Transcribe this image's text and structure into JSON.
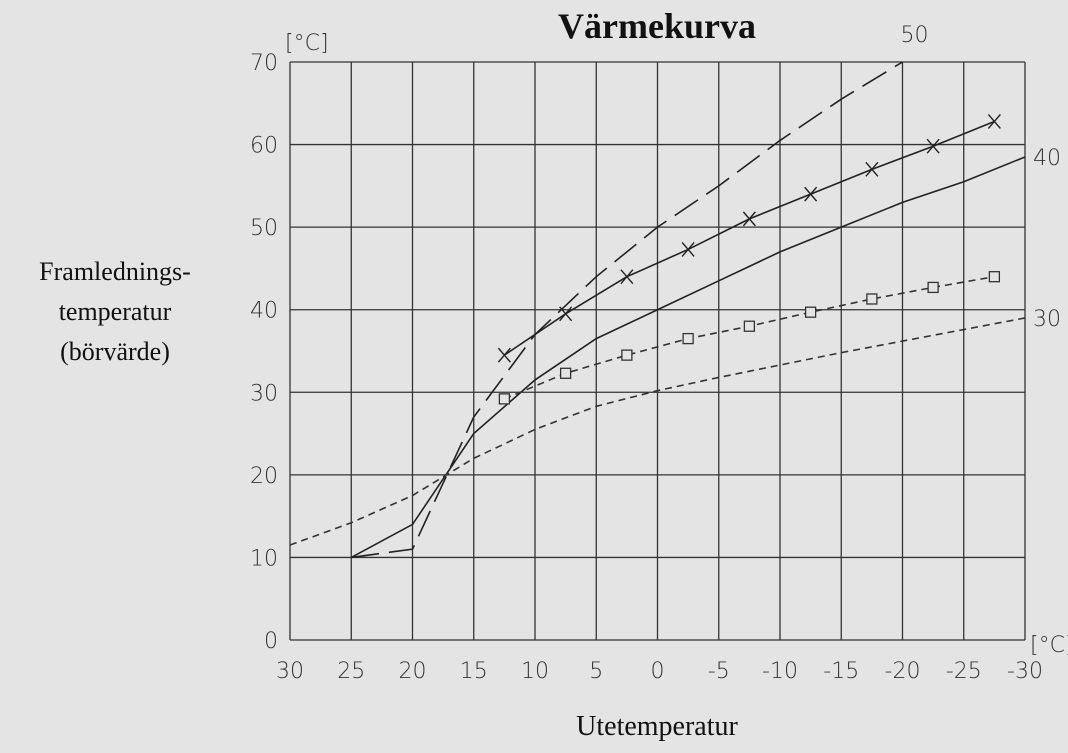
{
  "chart_data": {
    "type": "line",
    "title": "Värmekurva",
    "xlabel": "Utetemperatur",
    "ylabel_lines": [
      "Framlednings-",
      "temperatur",
      "(börvärde)"
    ],
    "x_unit": "[°C]",
    "y_unit": "[°C]",
    "xlim": [
      30,
      -30
    ],
    "ylim": [
      0,
      70
    ],
    "xticks": [
      30,
      25,
      20,
      15,
      10,
      5,
      0,
      -5,
      -10,
      -15,
      -20,
      -25,
      -30
    ],
    "yticks": [
      0,
      10,
      20,
      30,
      40,
      50,
      60,
      70
    ],
    "grid": true,
    "series": [
      {
        "name": "50",
        "color": "#222",
        "dash": "long",
        "x": [
          25,
          20,
          15,
          10,
          5,
          0,
          -5,
          -10,
          -15,
          -20
        ],
        "values": [
          10,
          11,
          27,
          37,
          44,
          50,
          55,
          60.5,
          65.5,
          70
        ]
      },
      {
        "name": "40",
        "color": "#222",
        "dash": "solid",
        "x": [
          25,
          20,
          15,
          10,
          5,
          0,
          -5,
          -10,
          -15,
          -20,
          -25,
          -30
        ],
        "values": [
          10,
          14,
          25,
          31.5,
          36.5,
          40,
          43.5,
          47,
          50,
          53,
          55.5,
          58.5
        ]
      },
      {
        "color": "#222",
        "dash": "solid",
        "marker": "x",
        "x": [
          12.5,
          7.5,
          2.5,
          -2.5,
          -7.5,
          -12.5,
          -17.5,
          -22.5,
          -27.5
        ],
        "values": [
          34.5,
          39.5,
          44,
          47.3,
          51,
          54,
          57,
          59.8,
          62.8
        ]
      },
      {
        "color": "#333",
        "dash": "short",
        "marker": "square",
        "x": [
          12.5,
          7.5,
          2.5,
          -2.5,
          -7.5,
          -12.5,
          -17.5,
          -22.5,
          -27.5
        ],
        "values": [
          29.2,
          32.3,
          34.5,
          36.5,
          38,
          39.7,
          41.3,
          42.7,
          44
        ]
      },
      {
        "name": "30",
        "color": "#333",
        "dash": "short",
        "x": [
          30,
          25,
          20,
          15,
          10,
          5,
          0,
          -5,
          -10,
          -15,
          -20,
          -25,
          -30
        ],
        "values": [
          11.5,
          14.2,
          17.5,
          22,
          25.5,
          28.3,
          30.2,
          31.8,
          33.3,
          34.8,
          36.2,
          37.6,
          39
        ]
      }
    ]
  }
}
